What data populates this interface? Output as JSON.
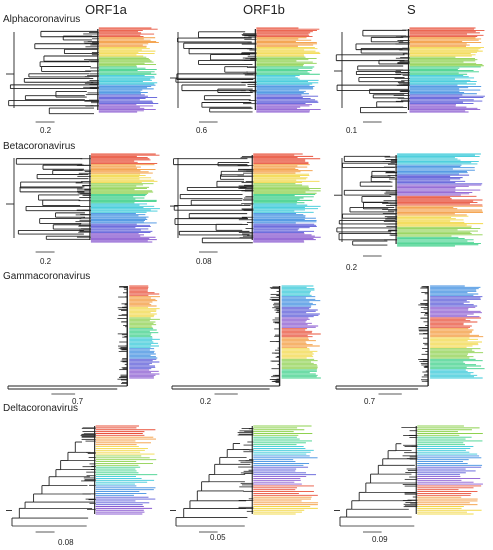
{
  "columns": [
    "ORF1a",
    "ORF1b",
    "S"
  ],
  "rows": [
    {
      "title": "Alphacoronavirus",
      "scales": [
        "0.2",
        "0.6",
        "0.1"
      ]
    },
    {
      "title": "Betacoronavirus",
      "scales": [
        "0.2",
        "0.08",
        "0.2"
      ]
    },
    {
      "title": "Gammacoronavirus",
      "scales": [
        "0.7",
        "0.2",
        "0.7"
      ]
    },
    {
      "title": "Deltacoronavirus",
      "scales": [
        "0.08",
        "0.05",
        "0.09"
      ]
    }
  ],
  "colors": {
    "branch": "#222222",
    "rainbow": [
      "#e8503a",
      "#f39a3c",
      "#f2d84a",
      "#8ed14f",
      "#3fd08a",
      "#36c8d8",
      "#3f8ee0",
      "#5a5ad8",
      "#8a5ad0"
    ]
  }
}
